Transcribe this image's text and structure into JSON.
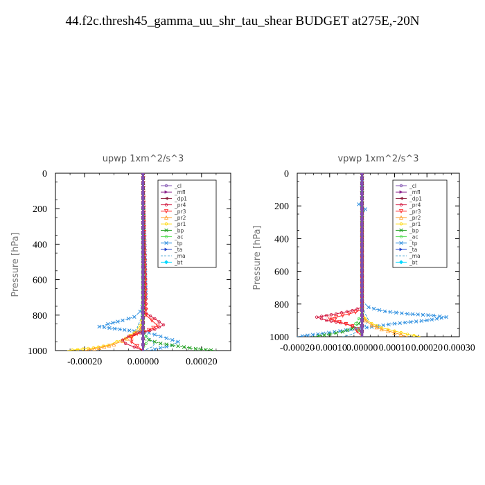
{
  "page": {
    "title": "44.f2c.thresh45_gamma_uu_shr_tau_shear  BUDGET at275E,-20N"
  },
  "chart_data": [
    {
      "type": "line",
      "title": "upwp   1xm^2/s^3",
      "ylabel": "Pressure [hPa]",
      "xlabel": "",
      "xlim": [
        -0.0003,
        0.0003
      ],
      "ylim": [
        1000,
        0
      ],
      "x_ticks": [
        "-0.00020",
        "0.00000",
        "0.00020"
      ],
      "x_tick_values": [
        -0.0002,
        0.0,
        0.0002
      ],
      "y_ticks": [
        "0",
        "200",
        "400",
        "600",
        "800",
        "1000"
      ],
      "y_tick_values": [
        0,
        200,
        400,
        600,
        800,
        1000
      ],
      "legend_position": "top-right",
      "legend": [
        {
          "name": "_cl",
          "color": "#7f4fb0",
          "marker": "o"
        },
        {
          "name": "_mfl",
          "color": "#8a1e8a",
          "marker": ">"
        },
        {
          "name": "_dp1",
          "color": "#8b1a3a",
          "marker": "<"
        },
        {
          "name": "_pr4",
          "color": "#d2143c",
          "marker": "o"
        },
        {
          "name": "_pr3",
          "color": "#ff2020",
          "marker": "v"
        },
        {
          "name": "_pr2",
          "color": "#ff9b22",
          "marker": "^"
        },
        {
          "name": "_pr1",
          "color": "#ffd700",
          "marker": "o"
        },
        {
          "name": "_bp",
          "color": "#22a022",
          "marker": "x"
        },
        {
          "name": "_ac",
          "color": "#55dd55",
          "marker": "o"
        },
        {
          "name": "_tp",
          "color": "#3090e0",
          "marker": "x"
        },
        {
          "name": "_ta",
          "color": "#2244cc",
          "marker": ">"
        },
        {
          "name": "_ma",
          "color": "#3aa0d0",
          "marker": "-"
        },
        {
          "name": "_bt",
          "color": "#00d8ff",
          "marker": "D"
        }
      ],
      "series": [
        {
          "name": "_tp",
          "x": [
            0,
            1e-05,
            -1e-05,
            -3e-05,
            -7e-05,
            -0.00012,
            -0.00015,
            -8e-05,
            2e-05,
            8e-05,
            0.00012,
            0.0001,
            6e-05,
            2e-05
          ],
          "y": [
            0,
            700,
            780,
            810,
            830,
            850,
            865,
            880,
            900,
            930,
            950,
            970,
            985,
            1000
          ]
        },
        {
          "name": "_ma",
          "x": [
            0,
            0,
            -1e-05,
            -2e-05,
            0,
            2e-05,
            4e-05,
            3e-05,
            1e-05,
            0
          ],
          "y": [
            0,
            750,
            830,
            870,
            900,
            930,
            960,
            980,
            995,
            1000
          ]
        },
        {
          "name": "_pr1",
          "x": [
            0,
            0,
            -1e-05,
            -3e-05,
            -6e-05,
            -9e-05,
            -0.00012,
            -0.00017,
            -0.00026
          ],
          "y": [
            0,
            800,
            860,
            900,
            930,
            950,
            970,
            985,
            1000
          ]
        },
        {
          "name": "_pr2",
          "x": [
            0,
            0,
            -1e-05,
            -4e-05,
            -7e-05,
            -0.0001,
            -0.00015,
            -0.0002
          ],
          "y": [
            0,
            830,
            880,
            920,
            945,
            965,
            985,
            1000
          ]
        },
        {
          "name": "_pr4",
          "x": [
            0,
            1e-05,
            4e-05,
            7e-05,
            4e-05,
            -1e-05,
            -5e-05,
            -7e-05,
            -6e-05,
            -3e-05,
            0
          ],
          "y": [
            0,
            790,
            820,
            855,
            880,
            900,
            920,
            940,
            960,
            980,
            1000
          ]
        },
        {
          "name": "_pr3",
          "x": [
            0,
            1e-05,
            3e-05,
            5e-05,
            2e-05,
            -2e-05,
            -4e-05,
            -4e-05,
            -2e-05,
            0
          ],
          "y": [
            0,
            800,
            830,
            860,
            885,
            905,
            925,
            950,
            975,
            1000
          ]
        },
        {
          "name": "_bp",
          "x": [
            0,
            0,
            2e-05,
            6e-05,
            0.00012,
            0.00018,
            0.00025
          ],
          "y": [
            0,
            900,
            940,
            960,
            975,
            990,
            1000
          ]
        },
        {
          "name": "_ac",
          "x": [
            0,
            0,
            1e-05,
            1e-05,
            0
          ],
          "y": [
            0,
            880,
            920,
            960,
            1000
          ]
        },
        {
          "name": "_ta",
          "x": [
            0,
            0,
            0,
            0
          ],
          "y": [
            0,
            500,
            900,
            1000
          ]
        },
        {
          "name": "_dp1",
          "x": [
            0,
            0,
            0,
            0
          ],
          "y": [
            0,
            500,
            900,
            1000
          ]
        },
        {
          "name": "_mfl",
          "x": [
            0,
            0,
            0,
            0
          ],
          "y": [
            0,
            500,
            900,
            1000
          ]
        },
        {
          "name": "_cl",
          "x": [
            0,
            0,
            0,
            0
          ],
          "y": [
            0,
            500,
            900,
            1000
          ]
        }
      ]
    },
    {
      "type": "line",
      "title": "vpwp   1xm^2/s^3",
      "ylabel": "Pressure [hPa]",
      "xlabel": "",
      "xlim": [
        -0.0002,
        0.0003
      ],
      "ylim": [
        1000,
        0
      ],
      "x_ticks": [
        "-0.00020",
        "-0.00010",
        "0.00000",
        "0.00010",
        "0.00020",
        "0.00030"
      ],
      "x_tick_values": [
        -0.0002,
        -0.0001,
        0.0,
        0.0001,
        0.0002,
        0.0003
      ],
      "y_ticks": [
        "0",
        "200",
        "400",
        "600",
        "800",
        "1000"
      ],
      "y_tick_values": [
        0,
        200,
        400,
        600,
        800,
        1000
      ],
      "legend_position": "top-right",
      "legend": [
        {
          "name": "_cl",
          "color": "#7f4fb0",
          "marker": "o"
        },
        {
          "name": "_mfl",
          "color": "#8a1e8a",
          "marker": ">"
        },
        {
          "name": "_dp1",
          "color": "#8b1a3a",
          "marker": "<"
        },
        {
          "name": "_pr4",
          "color": "#d2143c",
          "marker": "o"
        },
        {
          "name": "_pr3",
          "color": "#ff2020",
          "marker": "v"
        },
        {
          "name": "_pr2",
          "color": "#ff9b22",
          "marker": "^"
        },
        {
          "name": "_pr1",
          "color": "#ffd700",
          "marker": "o"
        },
        {
          "name": "_bp",
          "color": "#22a022",
          "marker": "x"
        },
        {
          "name": "_ac",
          "color": "#55dd55",
          "marker": "o"
        },
        {
          "name": "_tp",
          "color": "#3090e0",
          "marker": "x"
        },
        {
          "name": "_ta",
          "color": "#2244cc",
          "marker": ">"
        },
        {
          "name": "_ma",
          "color": "#3aa0d0",
          "marker": "-"
        },
        {
          "name": "_bt",
          "color": "#00d8ff",
          "marker": "D"
        }
      ],
      "series": [
        {
          "name": "_tp",
          "x": [
            0,
            0,
            -1e-05,
            1e-05,
            0,
            0,
            2e-05,
            7e-05,
            0.00014,
            0.00022,
            0.00026,
            0.0002,
            0.0001,
            3e-05,
            -5e-05,
            -0.00012,
            -0.0002
          ],
          "y": [
            0,
            170,
            190,
            220,
            260,
            780,
            820,
            845,
            860,
            870,
            880,
            900,
            920,
            940,
            960,
            980,
            1000
          ]
        },
        {
          "name": "_ma",
          "x": [
            0,
            0,
            1e-05,
            2e-05,
            1e-05,
            -1e-05,
            -3e-05,
            -6e-05
          ],
          "y": [
            0,
            800,
            860,
            900,
            930,
            960,
            985,
            1000
          ]
        },
        {
          "name": "_pr1",
          "x": [
            0,
            0,
            1e-05,
            3e-05,
            6e-05,
            0.0001,
            0.00014,
            0.00018
          ],
          "y": [
            0,
            850,
            890,
            920,
            945,
            965,
            985,
            1000
          ]
        },
        {
          "name": "_pr2",
          "x": [
            0,
            0,
            1e-05,
            3e-05,
            6e-05,
            0.0001,
            0.00014
          ],
          "y": [
            0,
            860,
            900,
            930,
            955,
            975,
            1000
          ]
        },
        {
          "name": "_pr4",
          "x": [
            0,
            0,
            -3e-05,
            -8e-05,
            -0.00014,
            -0.00011,
            -5e-05,
            -1e-05,
            0
          ],
          "y": [
            0,
            820,
            840,
            860,
            880,
            900,
            920,
            950,
            1000
          ]
        },
        {
          "name": "_pr3",
          "x": [
            0,
            0,
            -2e-05,
            -6e-05,
            -0.0001,
            -7e-05,
            -3e-05,
            0
          ],
          "y": [
            0,
            830,
            850,
            870,
            890,
            910,
            935,
            1000
          ]
        },
        {
          "name": "_bp",
          "x": [
            0,
            0,
            -1e-05,
            -3e-05,
            -6e-05,
            -0.0001,
            -0.00015
          ],
          "y": [
            0,
            880,
            920,
            950,
            970,
            985,
            1000
          ]
        },
        {
          "name": "_ac",
          "x": [
            0,
            0,
            -1e-05,
            -2e-05,
            -1e-05,
            0
          ],
          "y": [
            0,
            860,
            890,
            920,
            960,
            1000
          ]
        },
        {
          "name": "_ta",
          "x": [
            0,
            0,
            0,
            0
          ],
          "y": [
            0,
            500,
            900,
            1000
          ]
        },
        {
          "name": "_dp1",
          "x": [
            0,
            0,
            0,
            0
          ],
          "y": [
            0,
            500,
            900,
            1000
          ]
        },
        {
          "name": "_mfl",
          "x": [
            0,
            0,
            0,
            0
          ],
          "y": [
            0,
            500,
            900,
            1000
          ]
        },
        {
          "name": "_cl",
          "x": [
            0,
            0,
            0,
            0
          ],
          "y": [
            0,
            500,
            900,
            1000
          ]
        }
      ]
    }
  ]
}
